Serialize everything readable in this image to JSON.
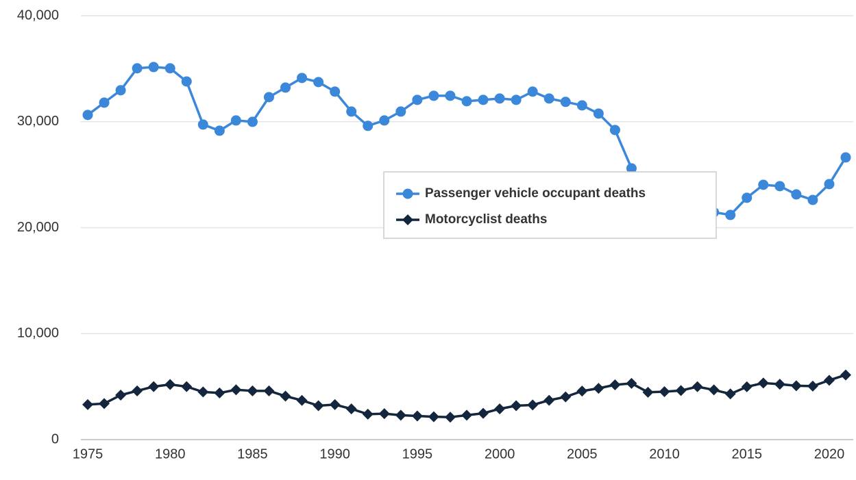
{
  "chart_data": {
    "type": "line",
    "x": [
      1975,
      1976,
      1977,
      1978,
      1979,
      1980,
      1981,
      1982,
      1983,
      1984,
      1985,
      1986,
      1987,
      1988,
      1989,
      1990,
      1991,
      1992,
      1993,
      1994,
      1995,
      1996,
      1997,
      1998,
      1999,
      2000,
      2001,
      2002,
      2003,
      2004,
      2005,
      2006,
      2007,
      2008,
      2009,
      2010,
      2011,
      2012,
      2013,
      2014,
      2015,
      2016,
      2017,
      2018,
      2019,
      2020,
      2021
    ],
    "series": [
      {
        "name": "Passenger vehicle occupant deaths",
        "color": "#3b87d9",
        "marker": "circle",
        "values": [
          30640,
          31800,
          32970,
          35040,
          35160,
          35040,
          33800,
          29730,
          29150,
          30120,
          29990,
          32320,
          33220,
          34130,
          33740,
          32840,
          30960,
          29610,
          30120,
          30960,
          32060,
          32450,
          32450,
          31930,
          32060,
          32190,
          32060,
          32840,
          32190,
          31870,
          31540,
          30770,
          29220,
          25600,
          23400,
          22770,
          21650,
          21700,
          21460,
          21200,
          22820,
          24050,
          23920,
          23140,
          22620,
          24110,
          26630
        ]
      },
      {
        "name": "Motorcyclist deaths",
        "color": "#13263d",
        "marker": "diamond",
        "values": [
          3300,
          3400,
          4200,
          4600,
          5000,
          5200,
          5000,
          4500,
          4400,
          4700,
          4600,
          4600,
          4100,
          3700,
          3200,
          3300,
          2900,
          2400,
          2450,
          2300,
          2230,
          2160,
          2120,
          2300,
          2480,
          2900,
          3200,
          3270,
          3710,
          4030,
          4580,
          4840,
          5170,
          5310,
          4470,
          4520,
          4630,
          4990,
          4690,
          4310,
          4980,
          5340,
          5230,
          5080,
          5050,
          5600,
          6100
        ]
      }
    ],
    "xlim": [
      1975,
      2021
    ],
    "xticks": [
      1975,
      1980,
      1985,
      1990,
      1995,
      2000,
      2005,
      2010,
      2015,
      2020
    ],
    "ylim": [
      0,
      40000
    ],
    "yticks": [
      0,
      {
        "value": 10000,
        "label": "10,000"
      },
      {
        "value": 20000,
        "label": "20,000"
      },
      {
        "value": 30000,
        "label": "30,000"
      },
      {
        "value": 40000,
        "label": "40,000"
      }
    ],
    "grid": true
  }
}
